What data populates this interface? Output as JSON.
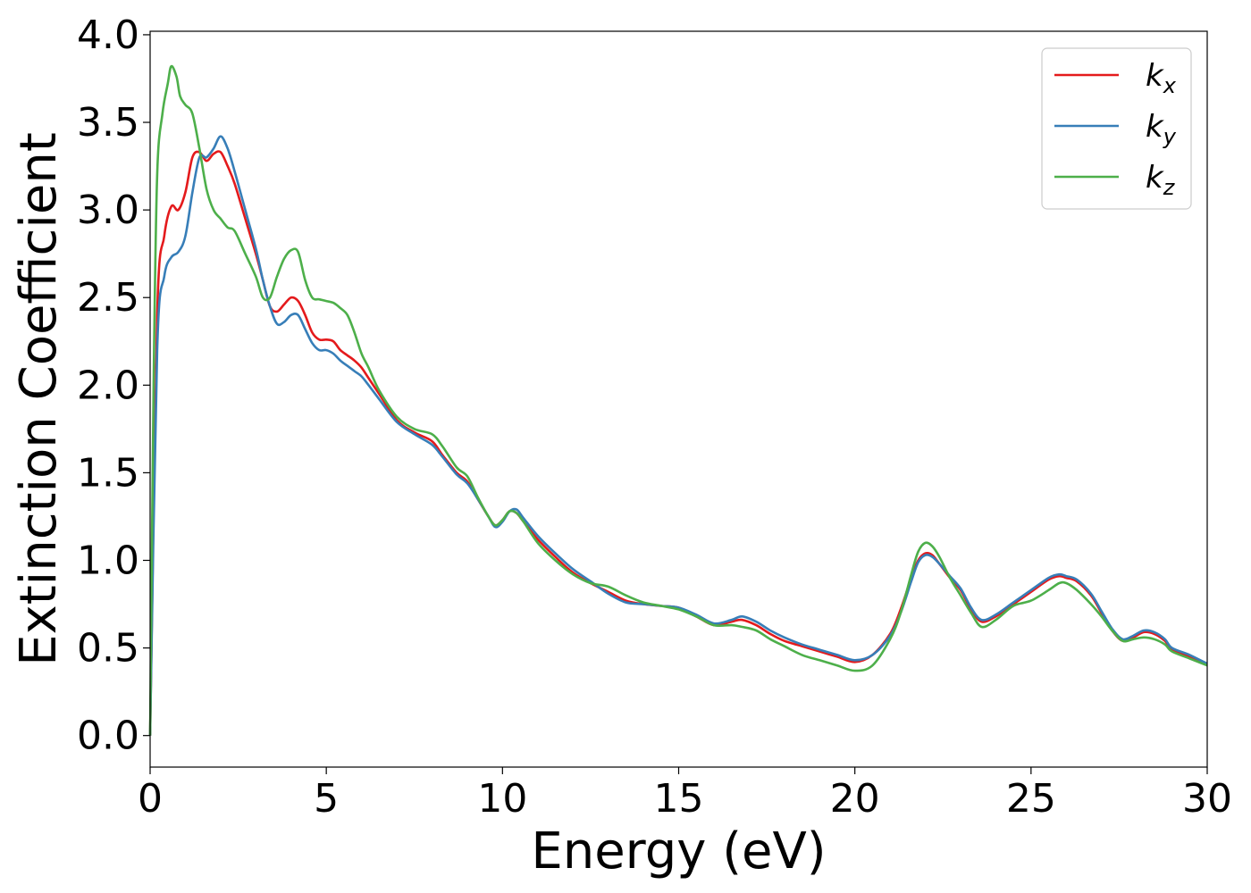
{
  "chart_data": {
    "type": "line",
    "title": "",
    "xlabel": "Energy (eV)",
    "ylabel": "Extinction Coefficient",
    "xlim": [
      0,
      30
    ],
    "ylim": [
      -0.18,
      4.02
    ],
    "xticks": [
      0,
      5,
      10,
      15,
      20,
      25,
      30
    ],
    "yticks": [
      0.0,
      0.5,
      1.0,
      1.5,
      2.0,
      2.5,
      3.0,
      3.5,
      4.0
    ],
    "xtick_labels": [
      "0",
      "5",
      "10",
      "15",
      "20",
      "25",
      "30"
    ],
    "ytick_labels": [
      "0.0",
      "0.5",
      "1.0",
      "1.5",
      "2.0",
      "2.5",
      "3.0",
      "3.5",
      "4.0"
    ],
    "grid": false,
    "legend_position": "top-right",
    "series": [
      {
        "name": "k_x",
        "label_base": "k",
        "label_sub": "x",
        "color": "#e41a1c",
        "x": [
          0.0,
          0.2,
          0.4,
          0.6,
          0.8,
          1.0,
          1.2,
          1.4,
          1.6,
          1.8,
          2.0,
          2.2,
          2.4,
          2.7,
          3.0,
          3.2,
          3.4,
          3.6,
          3.8,
          4.0,
          4.2,
          4.4,
          4.6,
          4.8,
          5.0,
          5.2,
          5.4,
          5.6,
          5.8,
          6.0,
          6.2,
          6.5,
          7.0,
          7.5,
          8.0,
          8.3,
          8.7,
          9.0,
          9.3,
          9.6,
          9.8,
          10.0,
          10.2,
          10.4,
          10.6,
          11.0,
          11.5,
          12.0,
          12.5,
          13.0,
          13.5,
          14.0,
          14.5,
          15.0,
          15.5,
          16.0,
          16.5,
          16.8,
          17.2,
          17.6,
          18.0,
          18.5,
          19.0,
          19.5,
          20.0,
          20.5,
          21.0,
          21.3,
          21.6,
          21.8,
          22.0,
          22.2,
          22.4,
          22.7,
          23.0,
          23.3,
          23.6,
          24.0,
          24.5,
          25.0,
          25.5,
          25.8,
          26.0,
          26.3,
          26.7,
          27.0,
          27.3,
          27.6,
          27.9,
          28.2,
          28.5,
          28.8,
          29.0,
          29.5,
          30.0
        ],
        "y": [
          0.0,
          2.4,
          2.85,
          3.02,
          3.0,
          3.1,
          3.3,
          3.33,
          3.28,
          3.32,
          3.33,
          3.25,
          3.15,
          2.95,
          2.75,
          2.6,
          2.45,
          2.42,
          2.46,
          2.5,
          2.48,
          2.4,
          2.3,
          2.26,
          2.26,
          2.25,
          2.2,
          2.17,
          2.14,
          2.1,
          2.04,
          1.95,
          1.8,
          1.73,
          1.68,
          1.6,
          1.5,
          1.45,
          1.35,
          1.25,
          1.2,
          1.23,
          1.28,
          1.27,
          1.22,
          1.12,
          1.02,
          0.93,
          0.87,
          0.82,
          0.77,
          0.75,
          0.74,
          0.73,
          0.68,
          0.63,
          0.65,
          0.66,
          0.63,
          0.58,
          0.54,
          0.51,
          0.48,
          0.45,
          0.42,
          0.46,
          0.58,
          0.72,
          0.9,
          1.0,
          1.04,
          1.03,
          0.98,
          0.9,
          0.83,
          0.72,
          0.65,
          0.68,
          0.75,
          0.82,
          0.89,
          0.91,
          0.9,
          0.88,
          0.8,
          0.7,
          0.6,
          0.54,
          0.56,
          0.59,
          0.58,
          0.54,
          0.49,
          0.45,
          0.41
        ]
      },
      {
        "name": "k_y",
        "label_base": "k",
        "label_sub": "y",
        "color": "#377eb8",
        "x": [
          0.0,
          0.2,
          0.4,
          0.6,
          0.8,
          1.0,
          1.2,
          1.4,
          1.6,
          1.8,
          2.0,
          2.2,
          2.4,
          2.7,
          3.0,
          3.2,
          3.4,
          3.6,
          3.8,
          4.0,
          4.2,
          4.4,
          4.6,
          4.8,
          5.0,
          5.2,
          5.4,
          5.6,
          5.8,
          6.0,
          6.2,
          6.5,
          7.0,
          7.5,
          8.0,
          8.3,
          8.7,
          9.0,
          9.3,
          9.6,
          9.8,
          10.0,
          10.2,
          10.4,
          10.6,
          11.0,
          11.5,
          12.0,
          12.5,
          13.0,
          13.5,
          14.0,
          14.5,
          15.0,
          15.5,
          16.0,
          16.5,
          16.8,
          17.2,
          17.6,
          18.0,
          18.5,
          19.0,
          19.5,
          20.0,
          20.5,
          21.0,
          21.3,
          21.6,
          21.8,
          22.0,
          22.2,
          22.4,
          22.7,
          23.0,
          23.3,
          23.6,
          24.0,
          24.5,
          25.0,
          25.5,
          25.8,
          26.0,
          26.3,
          26.7,
          27.0,
          27.3,
          27.6,
          27.9,
          28.2,
          28.5,
          28.8,
          29.0,
          29.5,
          30.0
        ],
        "y": [
          0.0,
          2.2,
          2.62,
          2.73,
          2.76,
          2.85,
          3.1,
          3.3,
          3.3,
          3.35,
          3.42,
          3.35,
          3.22,
          3.0,
          2.78,
          2.6,
          2.45,
          2.35,
          2.36,
          2.4,
          2.4,
          2.32,
          2.24,
          2.2,
          2.2,
          2.18,
          2.14,
          2.11,
          2.08,
          2.05,
          2.0,
          1.92,
          1.79,
          1.72,
          1.66,
          1.59,
          1.49,
          1.44,
          1.35,
          1.25,
          1.19,
          1.22,
          1.28,
          1.29,
          1.24,
          1.14,
          1.04,
          0.95,
          0.88,
          0.81,
          0.76,
          0.75,
          0.74,
          0.73,
          0.69,
          0.64,
          0.66,
          0.68,
          0.65,
          0.6,
          0.56,
          0.52,
          0.49,
          0.46,
          0.43,
          0.46,
          0.57,
          0.7,
          0.88,
          0.99,
          1.03,
          1.02,
          0.98,
          0.91,
          0.84,
          0.73,
          0.66,
          0.69,
          0.76,
          0.83,
          0.9,
          0.92,
          0.91,
          0.89,
          0.81,
          0.71,
          0.61,
          0.55,
          0.57,
          0.6,
          0.59,
          0.55,
          0.5,
          0.46,
          0.41
        ]
      },
      {
        "name": "k_z",
        "label_base": "k",
        "label_sub": "z",
        "color": "#4daf4a",
        "x": [
          0.0,
          0.1,
          0.2,
          0.35,
          0.5,
          0.6,
          0.75,
          0.85,
          1.0,
          1.2,
          1.4,
          1.6,
          1.8,
          2.0,
          2.2,
          2.4,
          2.7,
          3.0,
          3.2,
          3.4,
          3.6,
          3.8,
          4.0,
          4.2,
          4.4,
          4.6,
          4.8,
          5.0,
          5.2,
          5.4,
          5.6,
          5.8,
          6.0,
          6.2,
          6.5,
          7.0,
          7.5,
          8.0,
          8.3,
          8.7,
          9.0,
          9.3,
          9.6,
          9.8,
          10.0,
          10.2,
          10.4,
          10.6,
          11.0,
          11.5,
          12.0,
          12.5,
          13.0,
          13.5,
          14.0,
          14.5,
          15.0,
          15.5,
          16.0,
          16.5,
          16.8,
          17.2,
          17.6,
          18.0,
          18.5,
          19.0,
          19.5,
          20.0,
          20.5,
          21.0,
          21.3,
          21.6,
          21.8,
          22.0,
          22.2,
          22.4,
          22.7,
          23.0,
          23.3,
          23.6,
          24.0,
          24.5,
          25.0,
          25.5,
          25.8,
          26.0,
          26.3,
          26.7,
          27.0,
          27.3,
          27.6,
          27.9,
          28.2,
          28.5,
          28.8,
          29.0,
          29.5,
          30.0
        ],
        "y": [
          0.0,
          2.0,
          3.2,
          3.55,
          3.72,
          3.82,
          3.76,
          3.65,
          3.6,
          3.55,
          3.35,
          3.12,
          3.0,
          2.95,
          2.9,
          2.88,
          2.75,
          2.62,
          2.5,
          2.5,
          2.62,
          2.72,
          2.77,
          2.76,
          2.6,
          2.5,
          2.49,
          2.48,
          2.47,
          2.44,
          2.4,
          2.3,
          2.18,
          2.1,
          1.97,
          1.82,
          1.75,
          1.72,
          1.65,
          1.53,
          1.48,
          1.36,
          1.25,
          1.2,
          1.23,
          1.28,
          1.27,
          1.22,
          1.1,
          1.0,
          0.92,
          0.87,
          0.85,
          0.8,
          0.76,
          0.74,
          0.72,
          0.68,
          0.63,
          0.63,
          0.62,
          0.6,
          0.55,
          0.51,
          0.46,
          0.43,
          0.4,
          0.37,
          0.4,
          0.55,
          0.7,
          0.92,
          1.05,
          1.1,
          1.08,
          1.02,
          0.9,
          0.8,
          0.7,
          0.62,
          0.66,
          0.74,
          0.77,
          0.83,
          0.87,
          0.87,
          0.83,
          0.75,
          0.68,
          0.6,
          0.54,
          0.55,
          0.56,
          0.55,
          0.52,
          0.48,
          0.44,
          0.4
        ]
      }
    ]
  }
}
